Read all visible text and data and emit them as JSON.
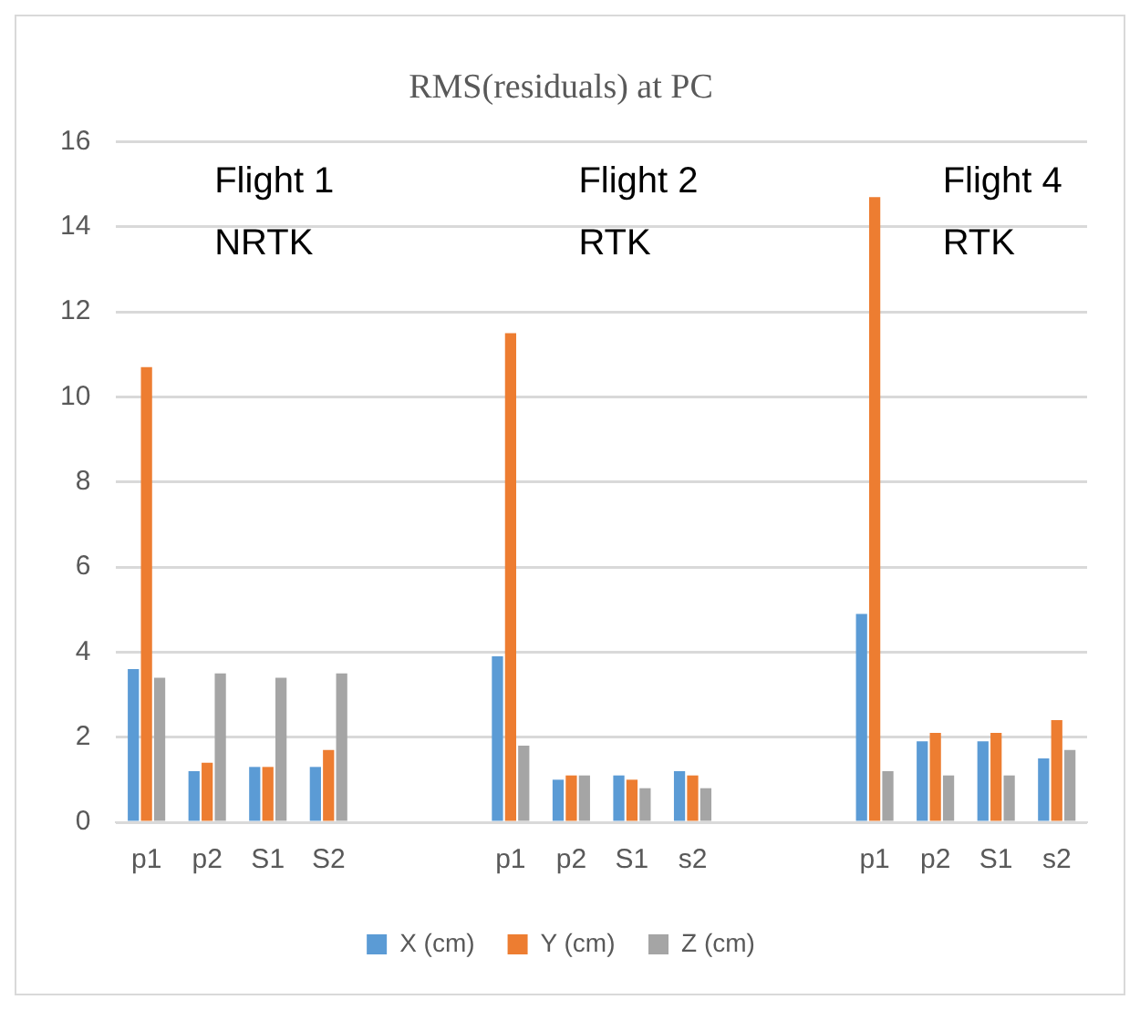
{
  "chart_data": {
    "type": "bar",
    "title": "RMS(residuals) at PC",
    "categories": [
      "p1",
      "p2",
      "S1",
      "S2",
      null,
      null,
      "p1",
      "p2",
      "S1",
      "s2",
      null,
      null,
      "p1",
      "p2",
      "S1",
      "s2"
    ],
    "series": [
      {
        "name": "X (cm)",
        "color": "#5b9bd5",
        "values": [
          3.6,
          1.2,
          1.3,
          1.3,
          null,
          null,
          3.9,
          1.0,
          1.1,
          1.2,
          null,
          null,
          4.9,
          1.9,
          1.9,
          1.5
        ]
      },
      {
        "name": "Y (cm)",
        "color": "#ed7d31",
        "values": [
          10.7,
          1.4,
          1.3,
          1.7,
          null,
          null,
          11.5,
          1.1,
          1.0,
          1.1,
          null,
          null,
          14.7,
          2.1,
          2.1,
          2.4
        ]
      },
      {
        "name": "Z (cm)",
        "color": "#a5a5a5",
        "values": [
          3.4,
          3.5,
          3.4,
          3.5,
          null,
          null,
          1.8,
          1.1,
          0.8,
          0.8,
          null,
          null,
          1.2,
          1.1,
          1.1,
          1.7
        ]
      }
    ],
    "ylim": [
      0,
      16
    ],
    "yticks": [
      0,
      2,
      4,
      6,
      8,
      10,
      12,
      14,
      16
    ],
    "grid": "y",
    "legend": "bottom",
    "annotations": [
      "Flight 1\nNRTK",
      "Flight 2\nRTK",
      "Flight 4\nRTK"
    ]
  }
}
